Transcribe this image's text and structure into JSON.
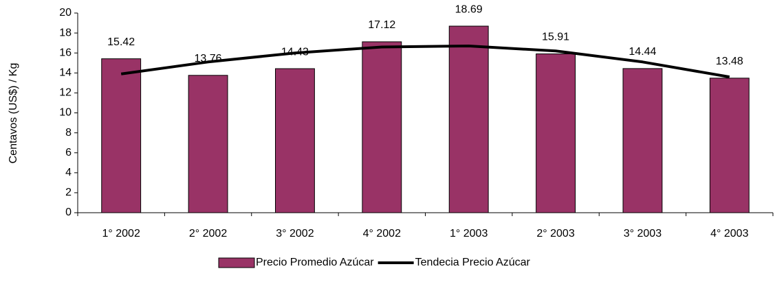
{
  "chart_data": {
    "type": "bar",
    "y_label": "Centavos (US$) / Kg",
    "categories": [
      "1° 2002",
      "2° 2002",
      "3° 2002",
      "4° 2002",
      "1° 2003",
      "2° 2003",
      "3° 2003",
      "4° 2003"
    ],
    "series": [
      {
        "name": "Precio Promedio Azúcar",
        "color": "#993366",
        "type": "bar",
        "values": [
          15.42,
          13.76,
          14.43,
          17.12,
          18.69,
          15.91,
          14.44,
          13.48
        ]
      },
      {
        "name": "Tendecia Precio Azúcar",
        "color": "#000000",
        "type": "line",
        "values": [
          13.9,
          15.1,
          16.0,
          16.6,
          16.7,
          16.2,
          15.1,
          13.6
        ]
      }
    ],
    "ylim": [
      0,
      20
    ],
    "yticks": [
      0,
      2,
      4,
      6,
      8,
      10,
      12,
      14,
      16,
      18,
      20
    ],
    "legend": "bottom"
  }
}
